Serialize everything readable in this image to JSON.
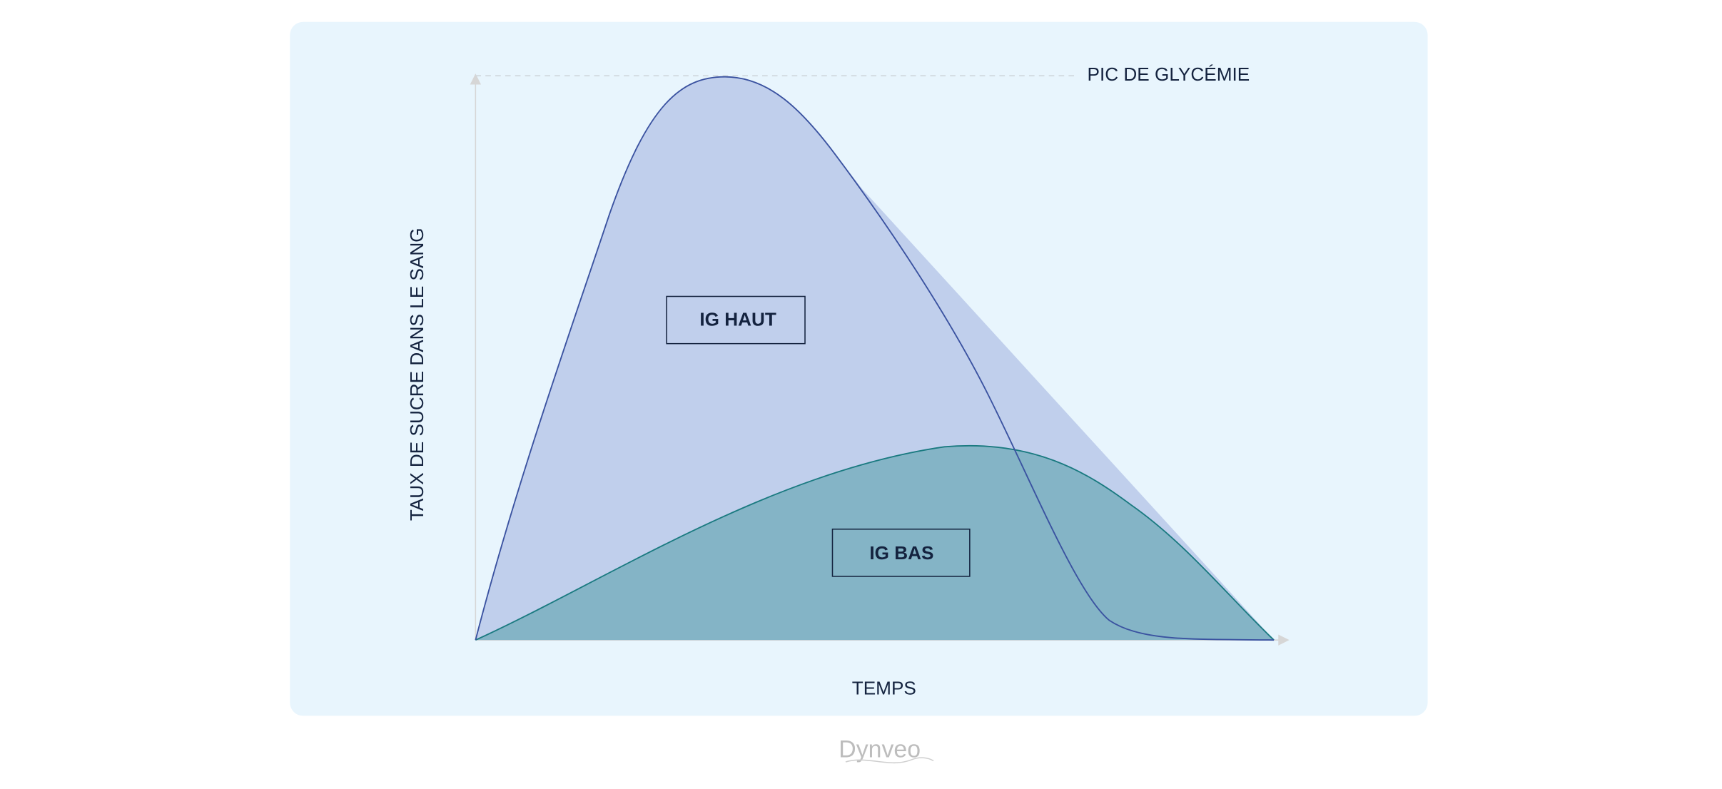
{
  "diagram": {
    "peak_label": "PIC DE GLYCÉMIE",
    "y_axis_label": "TAUX DE SUCRE DANS LE SANG",
    "x_axis_label": "TEMPS",
    "curves": [
      {
        "label": "IG HAUT"
      },
      {
        "label": "IG BAS"
      }
    ]
  },
  "footer": {
    "logo": "Dynveo"
  }
}
